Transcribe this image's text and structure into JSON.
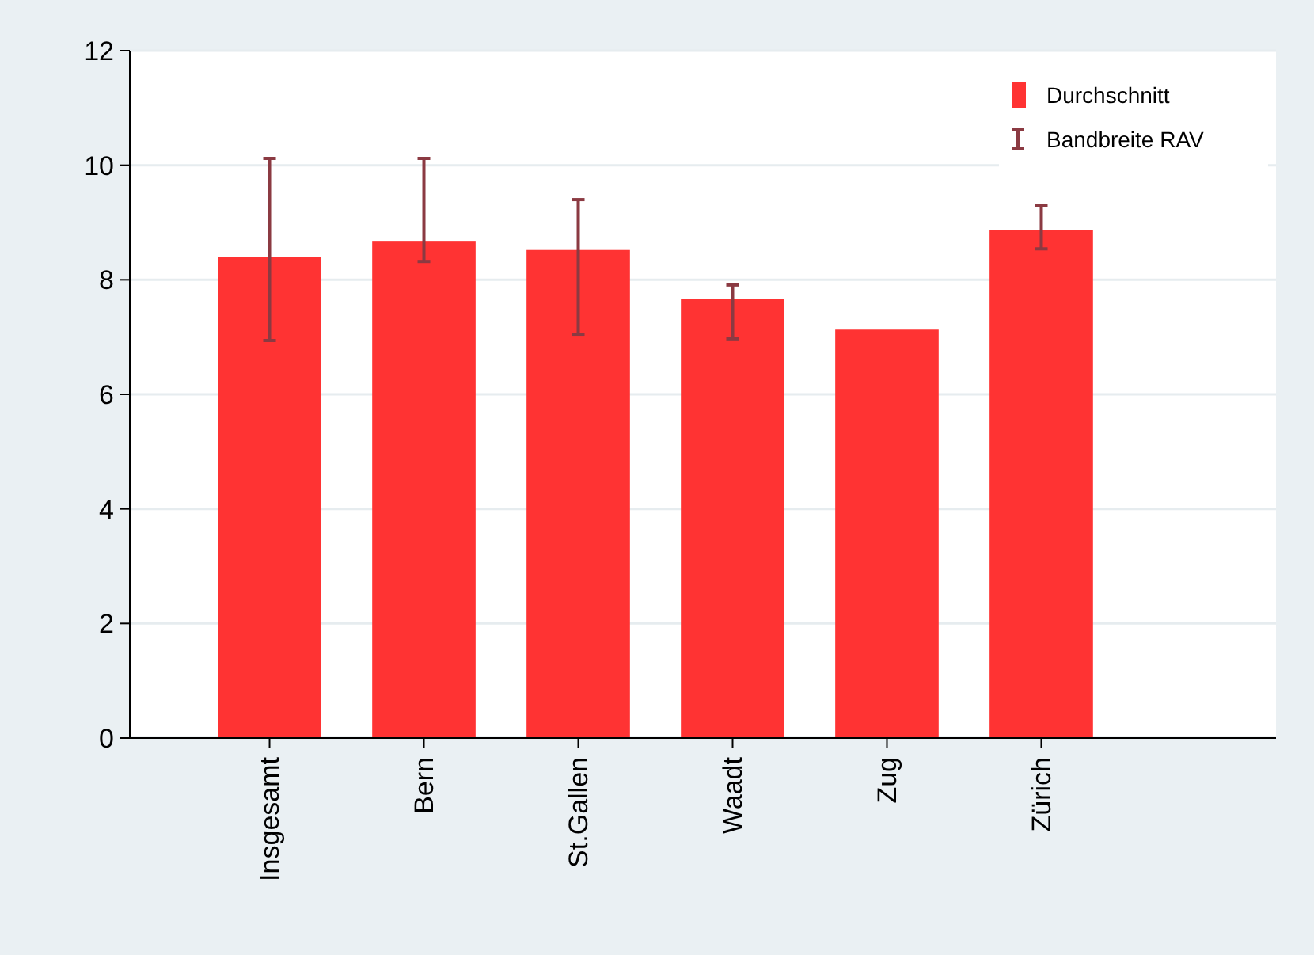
{
  "chart_data": {
    "type": "bar",
    "categories": [
      "Insgesamt",
      "Bern",
      "St.Gallen",
      "Waadt",
      "Zug",
      "Zürich"
    ],
    "series": [
      {
        "name": "Durchschnitt",
        "color": "#ff3333",
        "values": [
          8.4,
          8.68,
          8.52,
          7.66,
          7.13,
          8.87
        ],
        "errors": [
          [
            6.94,
            10.12
          ],
          [
            8.32,
            10.12
          ],
          [
            7.05,
            9.4
          ],
          [
            6.97,
            7.91
          ],
          null,
          [
            8.54,
            9.29
          ]
        ]
      }
    ],
    "annotations": [
      "Bandbreite RAV"
    ],
    "ylim": [
      0,
      12
    ],
    "yticks": [
      0,
      2,
      4,
      6,
      8,
      10,
      12
    ],
    "grid": "y",
    "legend": "top right"
  }
}
